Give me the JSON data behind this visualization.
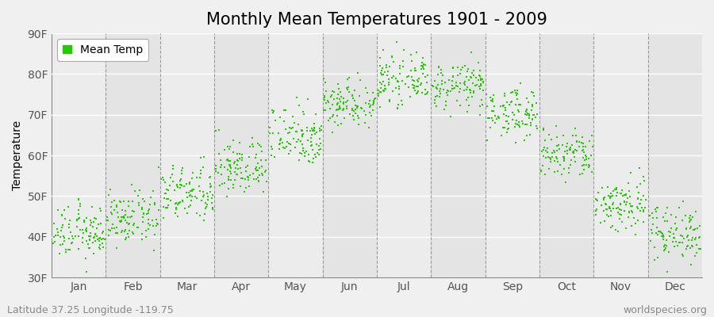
{
  "title": "Monthly Mean Temperatures 1901 - 2009",
  "ylabel": "Temperature",
  "ylim": [
    30,
    90
  ],
  "yticks": [
    30,
    40,
    50,
    60,
    70,
    80,
    90
  ],
  "ytick_labels": [
    "30F",
    "40F",
    "50F",
    "60F",
    "70F",
    "80F",
    "90F"
  ],
  "months": [
    "Jan",
    "Feb",
    "Mar",
    "Apr",
    "May",
    "Jun",
    "Jul",
    "Aug",
    "Sep",
    "Oct",
    "Nov",
    "Dec"
  ],
  "mean_temps_F": [
    41.0,
    44.5,
    50.5,
    57.0,
    65.0,
    73.0,
    78.5,
    77.0,
    70.5,
    60.0,
    48.0,
    41.0
  ],
  "spread": [
    3.2,
    3.2,
    3.5,
    3.5,
    3.8,
    3.0,
    2.8,
    2.8,
    3.0,
    3.2,
    3.5,
    3.5
  ],
  "n_years": 109,
  "dot_color": "#22cc00",
  "dot_size": 3,
  "background_color": "#f0f0f0",
  "band_colors": [
    "#ececec",
    "#e4e4e4"
  ],
  "legend_label": "Mean Temp",
  "footer_left": "Latitude 37.25 Longitude -119.75",
  "footer_right": "worldspecies.org",
  "title_fontsize": 15,
  "axis_fontsize": 10,
  "tick_fontsize": 10,
  "footer_fontsize": 9
}
